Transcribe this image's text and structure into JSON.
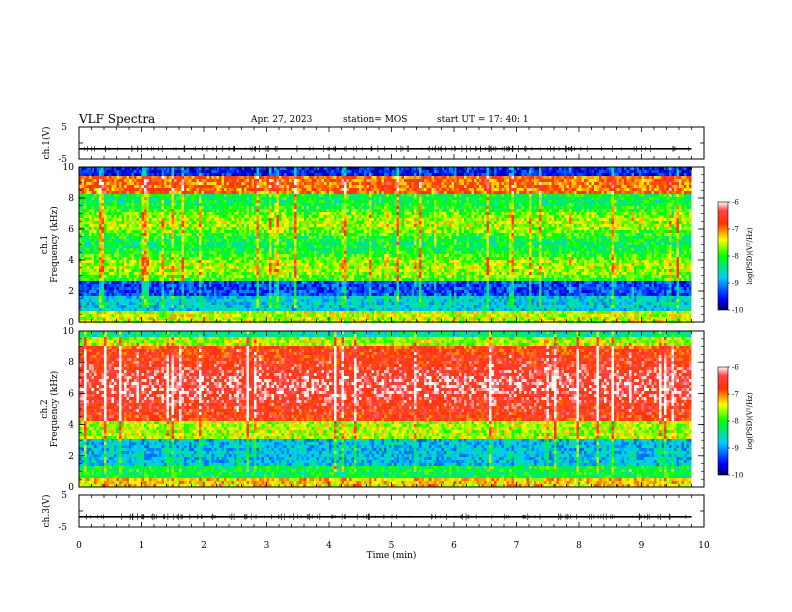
{
  "header": {
    "title": "VLF Spectra",
    "date": "Apr. 27, 2023",
    "station": "station= MOS",
    "start": "start  UT  =   17: 40: 1"
  },
  "chart_data": [
    {
      "type": "line",
      "panel": "ch1-waveform",
      "ylabel": "ch.1(V)",
      "ylim": [
        -5,
        5
      ],
      "yticks": [
        "5",
        "-5"
      ],
      "x": [
        0,
        1,
        2,
        3,
        4,
        5,
        6,
        7,
        8,
        9,
        9.8
      ],
      "values": [
        -1.8,
        -1.8,
        -1.8,
        -1.8,
        -1.8,
        -1.8,
        -1.8,
        -1.8,
        -1.8,
        -1.8,
        -1.8
      ]
    },
    {
      "type": "heatmap",
      "panel": "ch1-spectrogram",
      "ylabel": "ch.1\nFrequency (kHz)",
      "xlim": [
        0,
        10
      ],
      "ylim": [
        0,
        10
      ],
      "yticks": [
        "0",
        "2",
        "4",
        "6",
        "8",
        "10"
      ],
      "data_end_min": 9.8,
      "colorbar": {
        "label": "log(PSD)(V²/Hz)",
        "range": [
          -10,
          -6
        ],
        "ticks": [
          "-6",
          "-7",
          "-8",
          "-9",
          "-10"
        ]
      }
    },
    {
      "type": "heatmap",
      "panel": "ch2-spectrogram",
      "ylabel": "ch.2\nFrequency (kHz)",
      "xlim": [
        0,
        10
      ],
      "ylim": [
        0,
        10
      ],
      "yticks": [
        "0",
        "2",
        "4",
        "6",
        "8",
        "10"
      ],
      "data_end_min": 9.8,
      "colorbar": {
        "label": "log(PSD)(V²/Hz)",
        "range": [
          -10,
          -6
        ],
        "ticks": [
          "-6",
          "-7",
          "-8",
          "-9",
          "-10"
        ]
      }
    },
    {
      "type": "line",
      "panel": "ch3-waveform",
      "ylabel": "ch.3(V)",
      "ylim": [
        -5,
        5
      ],
      "yticks": [
        "5",
        "-5"
      ],
      "xlabel": "Time  (min)",
      "xticks": [
        "0",
        "1",
        "2",
        "3",
        "4",
        "5",
        "6",
        "7",
        "8",
        "9",
        "10"
      ],
      "x": [
        0,
        1,
        2,
        3,
        4,
        5,
        6,
        7,
        8,
        9,
        9.8
      ],
      "values": [
        -1.8,
        -1.8,
        -1.8,
        -1.8,
        -1.8,
        -1.8,
        -1.8,
        -1.8,
        -1.8,
        -1.8,
        -1.8
      ]
    }
  ]
}
